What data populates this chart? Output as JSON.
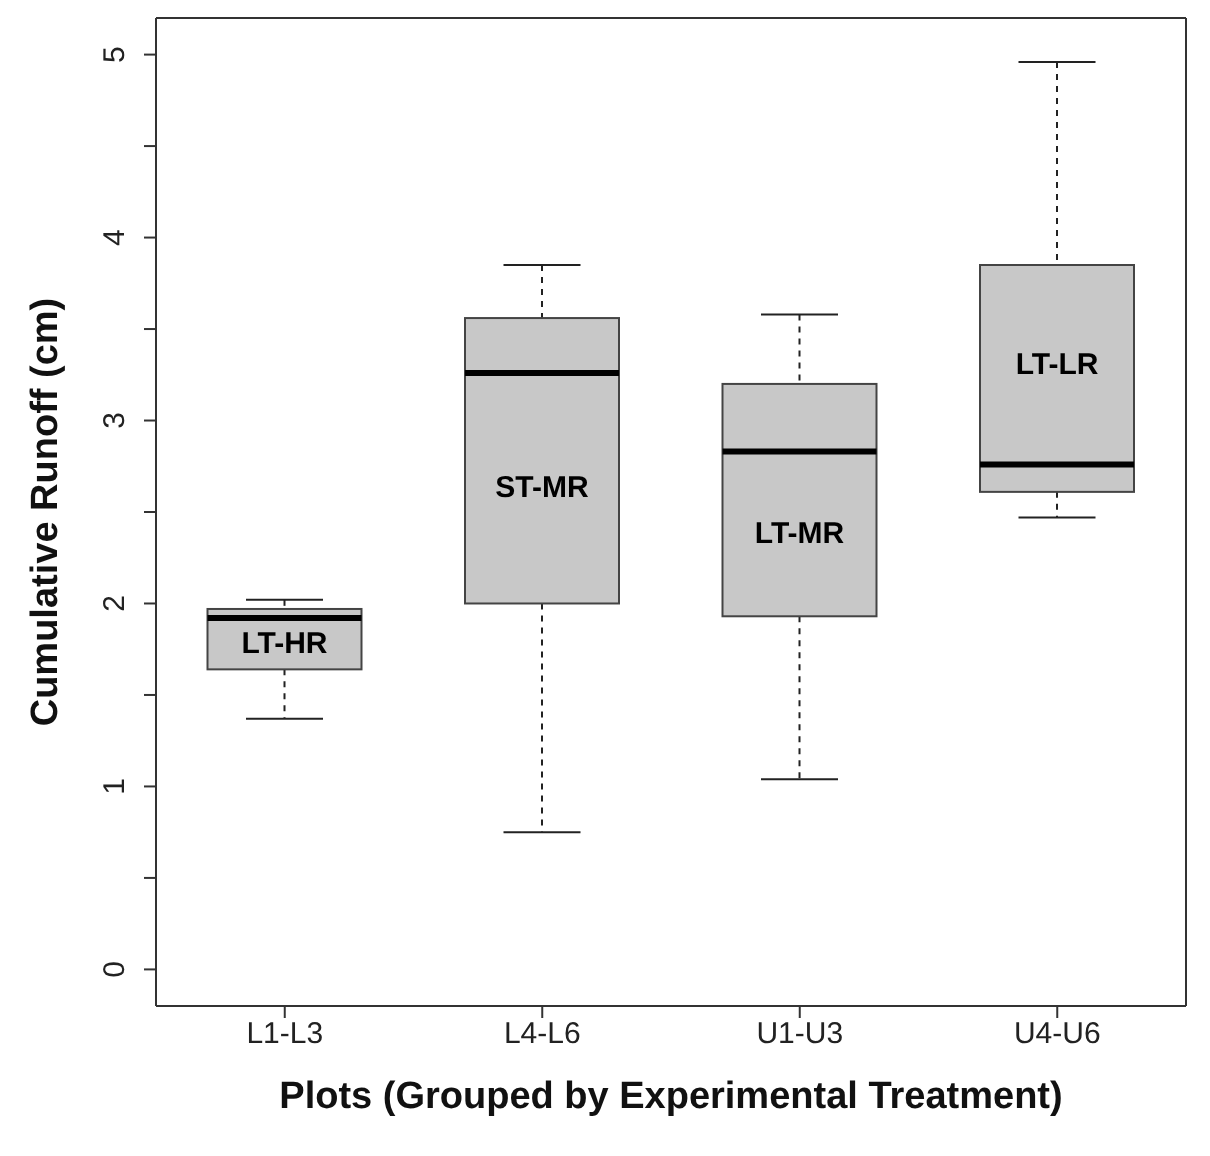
{
  "chart_data": {
    "type": "box",
    "xlabel": "Plots (Grouped by Experimental Treatment)",
    "ylabel": "Cumulative Runoff (cm)",
    "categories": [
      "L1-L3",
      "L4-L6",
      "U1-U3",
      "U4-U6"
    ],
    "color": "#c8c8c8",
    "boxes": [
      {
        "low": 1.37,
        "q1": 1.64,
        "median": 1.92,
        "q3": 1.97,
        "high": 2.02
      },
      {
        "low": 0.75,
        "q1": 2.0,
        "median": 3.26,
        "q3": 3.56,
        "high": 3.85
      },
      {
        "low": 1.04,
        "q1": 1.93,
        "median": 2.83,
        "q3": 3.2,
        "high": 3.58
      },
      {
        "low": 2.47,
        "q1": 2.61,
        "median": 2.76,
        "q3": 3.85,
        "high": 4.96
      }
    ],
    "ylim": [
      -0.2,
      5.2
    ],
    "yticks": [
      0,
      {
        "value": 0.5,
        "label": null
      },
      1,
      {
        "value": 1.5,
        "label": null
      },
      2,
      {
        "value": 2.5,
        "label": null
      },
      3,
      {
        "value": 3.5,
        "label": null
      },
      4,
      {
        "value": 4.5,
        "label": null
      },
      5
    ],
    "annotations": [
      "LT-HR",
      "ST-MR",
      "LT-MR",
      "LT-LR"
    ],
    "grid": false,
    "legend": false
  }
}
